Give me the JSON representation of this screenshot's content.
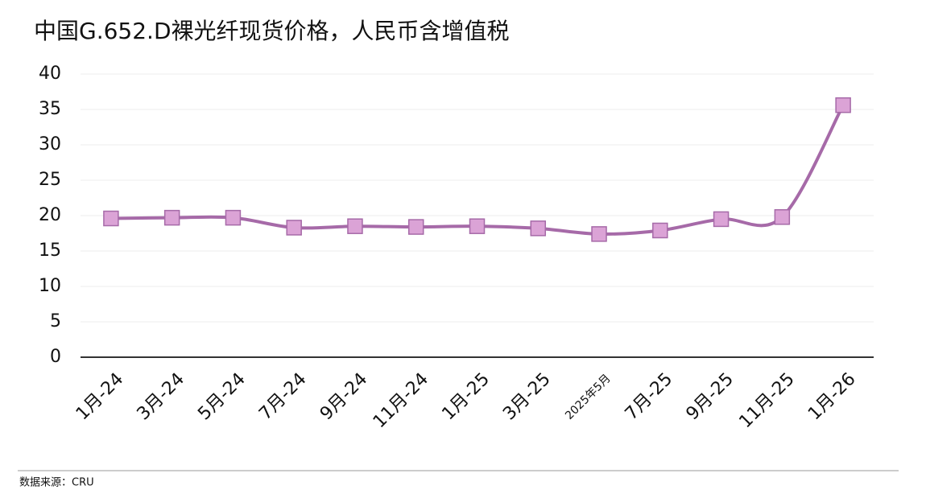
{
  "chart_data": {
    "type": "line",
    "title": "中国G.652.D裸光纤现货价格，人民币含增值税",
    "categories": [
      "1月-24",
      "3月-24",
      "5月-24",
      "7月-24",
      "9月-24",
      "11月-24",
      "1月-25",
      "3月-25",
      "2025年5月",
      "7月-25",
      "9月-25",
      "11月-25",
      "1月-26"
    ],
    "values": [
      19.6,
      19.7,
      19.7,
      18.3,
      18.5,
      18.4,
      18.5,
      18.2,
      17.4,
      17.9,
      19.5,
      19.8,
      35.6
    ],
    "color": "#a66aa8",
    "marker_color": "#dba3d6",
    "ylim": [
      0,
      40
    ],
    "yticks": [
      0,
      5,
      10,
      15,
      20,
      25,
      30,
      35,
      40
    ],
    "grid": true,
    "source": "数据来源：CRU"
  }
}
